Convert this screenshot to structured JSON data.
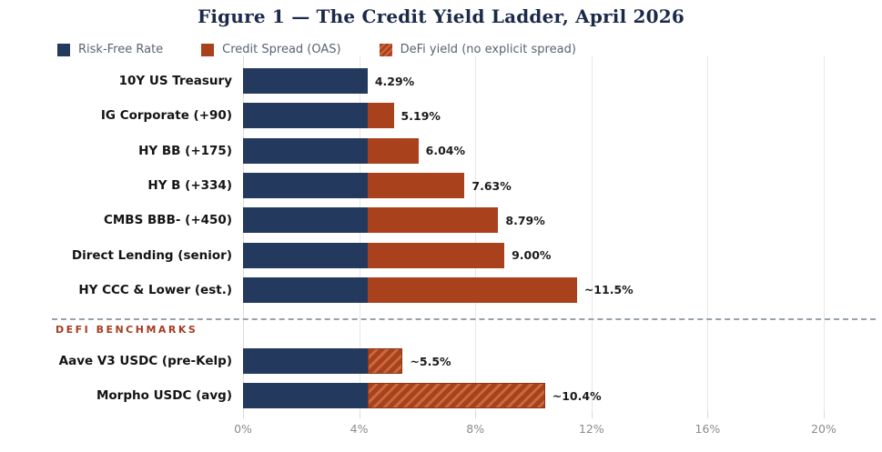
{
  "chart_data": {
    "type": "bar",
    "orientation": "horizontal",
    "title": "Figure 1 — The Credit Yield Ladder, April 2026",
    "xlim": [
      0,
      20
    ],
    "x_ticks": [
      "0%",
      "4%",
      "8%",
      "12%",
      "16%",
      "20%"
    ],
    "x_tick_values": [
      0,
      4,
      8,
      12,
      16,
      20
    ],
    "grid": true,
    "legend_position": "top-left",
    "colors": {
      "risk_free": "#24395e",
      "credit_spread": "#a9421c",
      "defi_hatch_base": "#a9421c",
      "defi_hatch_stripe": "#c9693f",
      "title": "#1b2a4a",
      "defi_section_label": "#a43c22",
      "gridline": "#e7e7e7"
    },
    "legend": [
      {
        "label": "Risk-Free Rate",
        "style": "solid-navy"
      },
      {
        "label": "Credit Spread (OAS)",
        "style": "solid-rust"
      },
      {
        "label": "DeFi yield (no explicit spread)",
        "style": "hatched-rust"
      }
    ],
    "rows": [
      {
        "label": "10Y US Treasury",
        "risk_free": 4.29,
        "spread": 0,
        "defi": 0,
        "total": 4.29,
        "total_label": "4.29%"
      },
      {
        "label": "IG Corporate (+90)",
        "risk_free": 4.29,
        "spread": 0.9,
        "defi": 0,
        "total": 5.19,
        "total_label": "5.19%"
      },
      {
        "label": "HY BB (+175)",
        "risk_free": 4.29,
        "spread": 1.75,
        "defi": 0,
        "total": 6.04,
        "total_label": "6.04%"
      },
      {
        "label": "HY B (+334)",
        "risk_free": 4.29,
        "spread": 3.34,
        "defi": 0,
        "total": 7.63,
        "total_label": "7.63%"
      },
      {
        "label": "CMBS BBB- (+450)",
        "risk_free": 4.29,
        "spread": 4.5,
        "defi": 0,
        "total": 8.79,
        "total_label": "8.79%"
      },
      {
        "label": "Direct Lending (senior)",
        "risk_free": 4.29,
        "spread": 4.71,
        "defi": 0,
        "total": 9.0,
        "total_label": "9.00%"
      },
      {
        "label": "HY CCC & Lower (est.)",
        "risk_free": 4.29,
        "spread": 7.21,
        "defi": 0,
        "total": 11.5,
        "total_label": "~11.5%"
      }
    ],
    "defi_section_label": "DEFI BENCHMARKS",
    "defi_rows": [
      {
        "label": "Aave V3 USDC (pre-Kelp)",
        "risk_free": 4.29,
        "spread": 0,
        "defi": 1.21,
        "total": 5.5,
        "total_label": "~5.5%"
      },
      {
        "label": "Morpho USDC (avg)",
        "risk_free": 4.29,
        "spread": 0,
        "defi": 6.11,
        "total": 10.4,
        "total_label": "~10.4%"
      }
    ]
  }
}
